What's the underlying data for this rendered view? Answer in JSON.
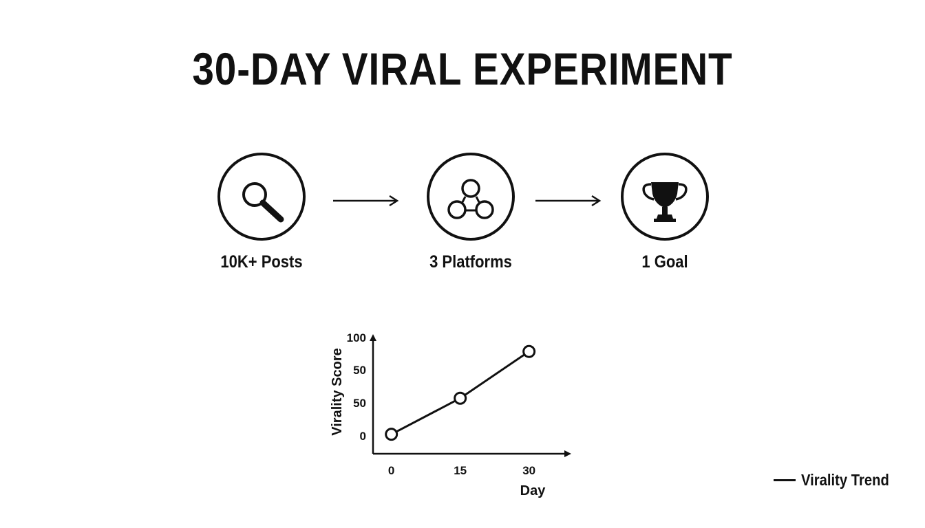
{
  "title": "30-DAY VIRAL EXPERIMENT",
  "steps": [
    {
      "label": "10K+ Posts",
      "icon": "magnifier-icon"
    },
    {
      "label": "3 Platforms",
      "icon": "network-nodes-icon"
    },
    {
      "label": "1 Goal",
      "icon": "trophy-icon"
    }
  ],
  "chart_data": {
    "type": "line",
    "xlabel": "Day",
    "ylabel": "Virality Score",
    "x_ticks": [
      "0",
      "15",
      "30"
    ],
    "y_ticks": [
      "0",
      "50",
      "50",
      "100"
    ],
    "series": [
      {
        "name": "Virality Trend",
        "x": [
          0,
          15,
          30
        ],
        "y": [
          5,
          42,
          90
        ]
      }
    ],
    "xlim": [
      -4,
      38
    ],
    "ylim": [
      -15,
      105
    ],
    "legend": "bottom-right",
    "grid": false,
    "color": "#111111"
  }
}
